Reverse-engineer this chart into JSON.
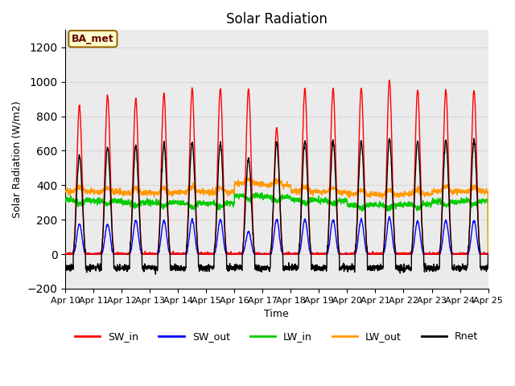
{
  "title": "Solar Radiation",
  "xlabel": "Time",
  "ylabel": "Solar Radiation (W/m2)",
  "ylim": [
    -200,
    1300
  ],
  "yticks": [
    -200,
    0,
    200,
    400,
    600,
    800,
    1000,
    1200
  ],
  "x_tick_labels": [
    "Apr 10",
    "Apr 11",
    "Apr 12",
    "Apr 13",
    "Apr 14",
    "Apr 15",
    "Apr 16",
    "Apr 17",
    "Apr 18",
    "Apr 19",
    "Apr 20",
    "Apr 21",
    "Apr 22",
    "Apr 23",
    "Apr 24",
    "Apr 25"
  ],
  "legend_entries": [
    "SW_in",
    "SW_out",
    "LW_in",
    "LW_out",
    "Rnet"
  ],
  "legend_colors": [
    "#ff0000",
    "#0000ff",
    "#00cc00",
    "#ff9900",
    "#000000"
  ],
  "annotation_text": "BA_met",
  "annotation_bg": "#ffffcc",
  "annotation_border": "#996600",
  "series_colors": {
    "SW_in": "#ff0000",
    "SW_out": "#0000ff",
    "LW_in": "#00cc00",
    "LW_out": "#ff9900",
    "Rnet": "#000000"
  },
  "grid_color": "#d8d8d8",
  "plot_bg": "#ebebeb",
  "days": 15,
  "points_per_day": 144,
  "SW_in_peaks": [
    860,
    920,
    900,
    930,
    960,
    960,
    960,
    730,
    960,
    960,
    960,
    1005,
    950,
    950,
    950
  ],
  "SW_out_peaks": [
    175,
    175,
    195,
    195,
    200,
    200,
    130,
    200,
    200,
    200,
    200,
    210,
    190,
    195,
    195
  ],
  "LW_in_base": [
    315,
    310,
    300,
    300,
    295,
    295,
    340,
    330,
    315,
    310,
    285,
    285,
    290,
    305,
    310
  ],
  "LW_out_base": [
    365,
    360,
    355,
    355,
    360,
    360,
    410,
    400,
    365,
    360,
    345,
    345,
    350,
    365,
    365
  ],
  "Rnet_peaks": [
    570,
    620,
    620,
    635,
    645,
    645,
    550,
    640,
    655,
    655,
    655,
    665,
    655,
    655,
    655
  ]
}
